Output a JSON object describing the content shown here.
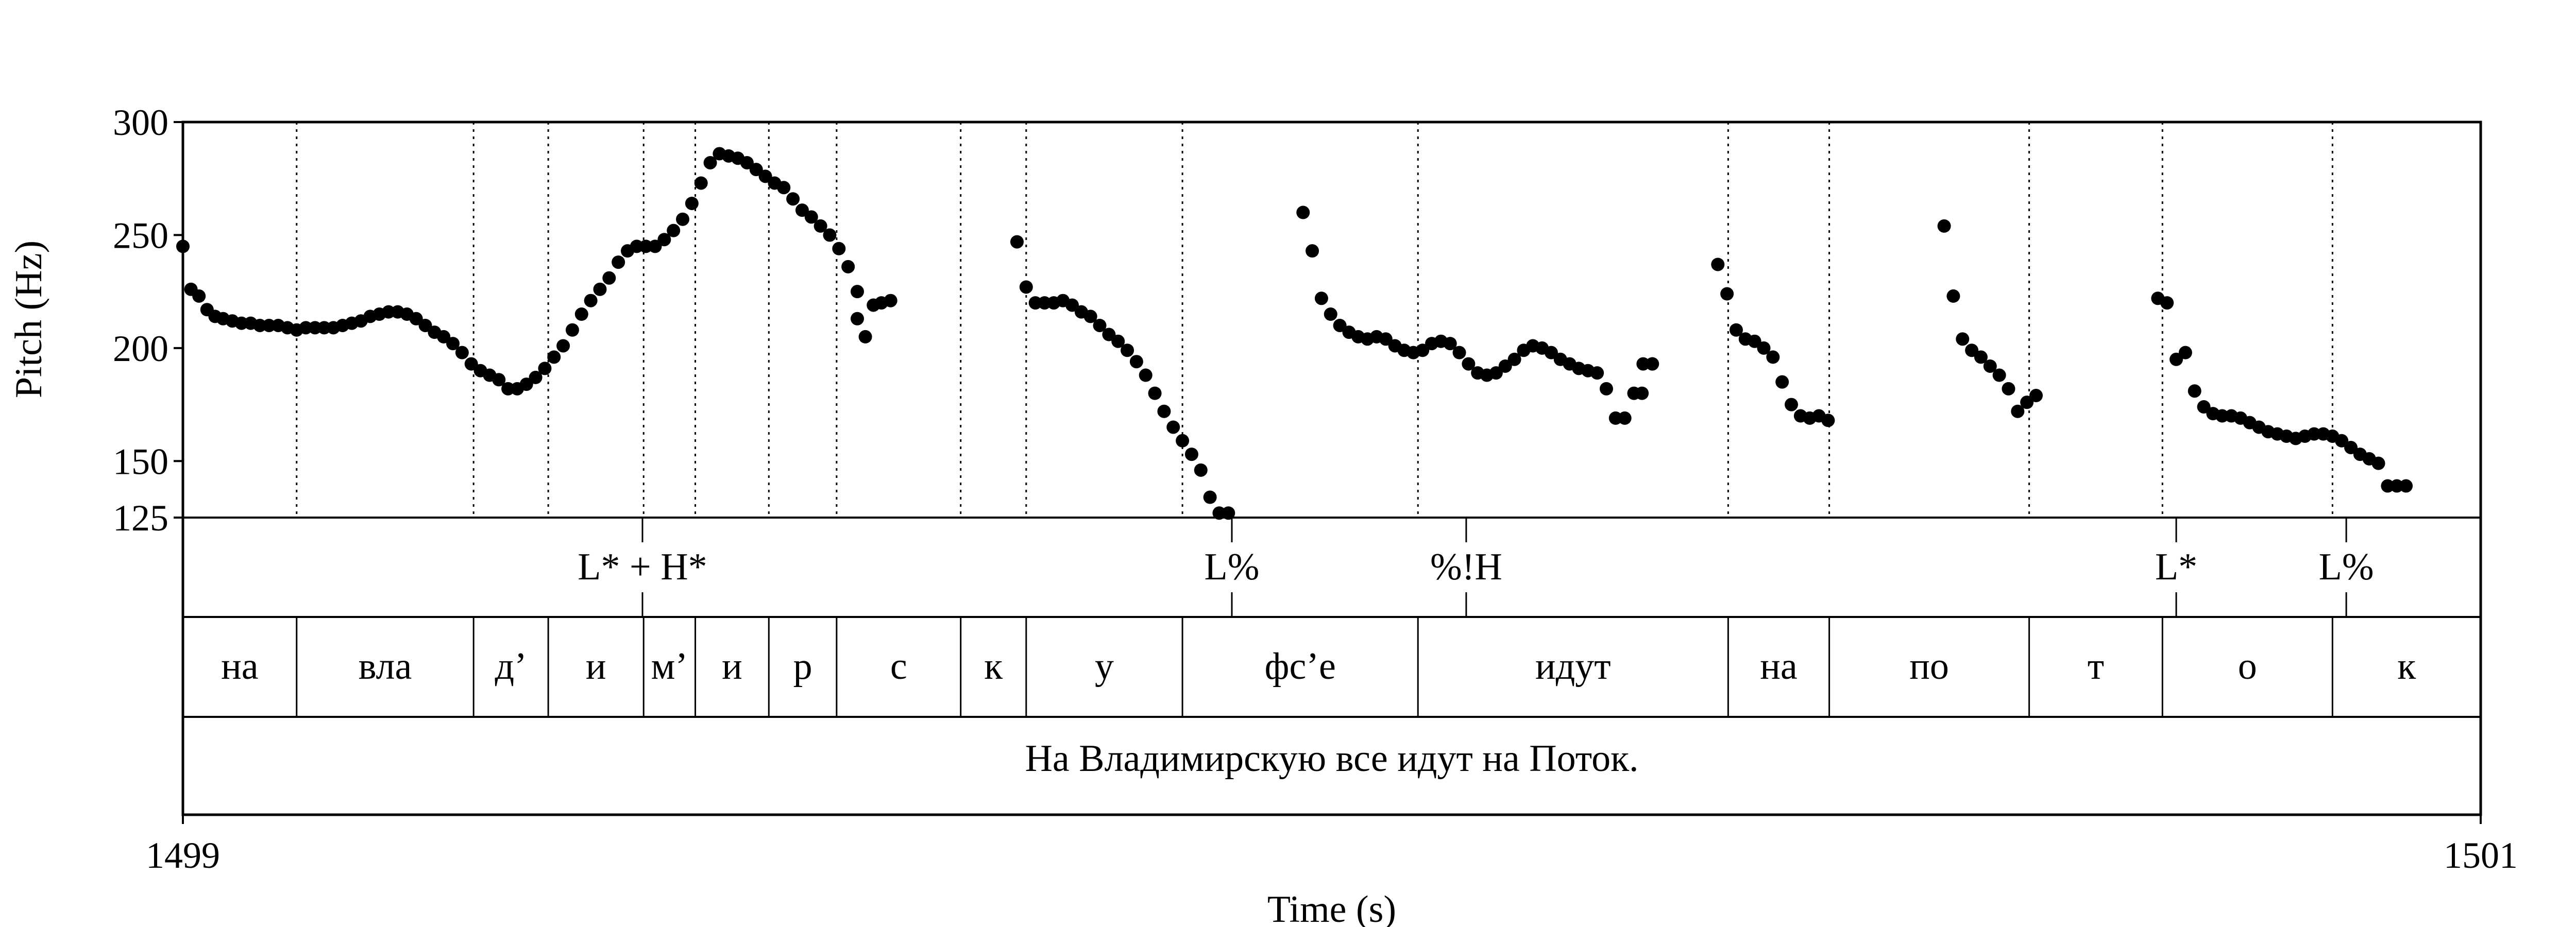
{
  "chart_data": {
    "type": "scatter",
    "title": "",
    "xlabel": "Time (s)",
    "ylabel": "Pitch (Hz)",
    "xlim": [
      1499,
      1501
    ],
    "ylim": [
      125,
      300
    ],
    "x_tick_labels": [
      "1499",
      "1501"
    ],
    "y_ticks": [
      125,
      150,
      200,
      250,
      300
    ],
    "y_tick_labels": [
      "125",
      "150",
      "200",
      "250",
      "300"
    ],
    "segments": [
      {
        "x": [
          1499.0,
          1499.007,
          1499.014,
          1499.021,
          1499.028,
          1499.035,
          1499.043,
          1499.051,
          1499.059,
          1499.067,
          1499.075,
          1499.083,
          1499.091,
          1499.099,
          1499.107,
          1499.115,
          1499.123,
          1499.131,
          1499.139,
          1499.147,
          1499.155,
          1499.163,
          1499.171,
          1499.179,
          1499.187,
          1499.195,
          1499.203,
          1499.211,
          1499.219,
          1499.227,
          1499.235,
          1499.243,
          1499.251,
          1499.259,
          1499.267,
          1499.275,
          1499.283,
          1499.291,
          1499.299,
          1499.307,
          1499.315,
          1499.323,
          1499.331,
          1499.339,
          1499.347,
          1499.355,
          1499.363,
          1499.371,
          1499.379,
          1499.387,
          1499.395,
          1499.403,
          1499.411,
          1499.419,
          1499.427,
          1499.435,
          1499.443,
          1499.451,
          1499.459,
          1499.467,
          1499.475,
          1499.483,
          1499.491,
          1499.499,
          1499.507,
          1499.515,
          1499.523,
          1499.531,
          1499.539,
          1499.547,
          1499.555,
          1499.563,
          1499.571,
          1499.579,
          1499.587
        ],
        "y": [
          245,
          226,
          223,
          217,
          214,
          213,
          212,
          211,
          211,
          210,
          210,
          210,
          209,
          208,
          209,
          209,
          209,
          209,
          210,
          211,
          212,
          214,
          215,
          216,
          216,
          215,
          213,
          210,
          207,
          205,
          202,
          198,
          193,
          190,
          188,
          186,
          182,
          182,
          184,
          187,
          191,
          196,
          201,
          208,
          215,
          221,
          226,
          231,
          238,
          243,
          245,
          245,
          245,
          248,
          252,
          257,
          264,
          273,
          282,
          286,
          285,
          284,
          282,
          279,
          276,
          273,
          271,
          266,
          261,
          258,
          254,
          250,
          244,
          236,
          225
        ]
      },
      {
        "x": [
          1499.587,
          1499.594,
          1499.601,
          1499.608,
          1499.616
        ],
        "y": [
          213,
          205,
          219,
          220,
          221
        ]
      },
      {
        "x": [
          1499.726,
          1499.734,
          1499.742,
          1499.75,
          1499.758,
          1499.766,
          1499.774,
          1499.782,
          1499.79,
          1499.798,
          1499.806,
          1499.814,
          1499.822,
          1499.83,
          1499.838,
          1499.846,
          1499.854,
          1499.862,
          1499.87,
          1499.878,
          1499.886,
          1499.894,
          1499.902,
          1499.91
        ],
        "y": [
          247,
          227,
          220,
          220,
          220,
          221,
          219,
          216,
          214,
          210,
          206,
          203,
          199,
          194,
          188,
          180,
          172,
          165,
          159,
          153,
          146,
          134,
          127,
          127
        ]
      },
      {
        "x": [
          1499.975,
          1499.983,
          1499.991,
          1499.999,
          1500.007,
          1500.015,
          1500.023,
          1500.031,
          1500.039,
          1500.047,
          1500.055,
          1500.063,
          1500.071,
          1500.079,
          1500.087,
          1500.095,
          1500.103,
          1500.111,
          1500.119,
          1500.127,
          1500.135,
          1500.143,
          1500.151,
          1500.159,
          1500.167,
          1500.175,
          1500.183,
          1500.191,
          1500.199,
          1500.207,
          1500.215,
          1500.223,
          1500.231,
          1500.239,
          1500.247,
          1500.255,
          1500.263,
          1500.271,
          1500.279
        ],
        "y": [
          260,
          243,
          222,
          215,
          210,
          207,
          205,
          204,
          205,
          204,
          201,
          199,
          198,
          199,
          202,
          203,
          202,
          198,
          193,
          189,
          188,
          189,
          192,
          195,
          199,
          201,
          200,
          198,
          195,
          193,
          191,
          190,
          189,
          182,
          169,
          169,
          180,
          193,
          193
        ]
      },
      {
        "x": [
          1500.27,
          1500.279
        ],
        "y": [
          180,
          193
        ]
      },
      {
        "x": [
          1500.336,
          1500.344,
          1500.352,
          1500.36,
          1500.368,
          1500.376,
          1500.384,
          1500.392,
          1500.4,
          1500.408,
          1500.416,
          1500.424,
          1500.432
        ],
        "y": [
          237,
          224,
          208,
          204,
          203,
          200,
          196,
          185,
          175,
          170,
          169,
          170,
          168
        ]
      },
      {
        "x": [
          1500.533,
          1500.541,
          1500.549,
          1500.557,
          1500.565,
          1500.573,
          1500.581,
          1500.589,
          1500.597,
          1500.605,
          1500.613
        ],
        "y": [
          254,
          223,
          204,
          199,
          196,
          192,
          188,
          182,
          172,
          176,
          179
        ]
      },
      {
        "x": [
          1500.719,
          1500.727,
          1500.735,
          1500.743,
          1500.751,
          1500.759,
          1500.767,
          1500.775,
          1500.783,
          1500.791,
          1500.799,
          1500.807,
          1500.815,
          1500.823,
          1500.831,
          1500.839,
          1500.847,
          1500.855,
          1500.863,
          1500.871,
          1500.879,
          1500.887,
          1500.895,
          1500.903,
          1500.911,
          1500.919,
          1500.927,
          1500.935
        ],
        "y": [
          222,
          220,
          195,
          198,
          181,
          174,
          171,
          170,
          170,
          169,
          167,
          165,
          163,
          162,
          161,
          160,
          161,
          162,
          162,
          161,
          159,
          156,
          153,
          151,
          149,
          139,
          139,
          139
        ]
      }
    ],
    "tiers": {
      "tones": [
        {
          "label": "L* + H*",
          "t": 1499.4
        },
        {
          "label": "L%",
          "t": 1499.913
        },
        {
          "label": "%!H",
          "t": 1500.117
        },
        {
          "label": "L*",
          "t": 1500.735
        },
        {
          "label": "L%",
          "t": 1500.883
        }
      ],
      "syllables": [
        {
          "label": "на",
          "start": 1499.0,
          "end": 1499.099
        },
        {
          "label": "вла",
          "start": 1499.099,
          "end": 1499.253
        },
        {
          "label": "д’",
          "start": 1499.253,
          "end": 1499.318
        },
        {
          "label": "и",
          "start": 1499.318,
          "end": 1499.401
        },
        {
          "label": "м’",
          "start": 1499.401,
          "end": 1499.446
        },
        {
          "label": "и",
          "start": 1499.446,
          "end": 1499.51
        },
        {
          "label": "р",
          "start": 1499.51,
          "end": 1499.569
        },
        {
          "label": "с",
          "start": 1499.569,
          "end": 1499.677
        },
        {
          "label": "к",
          "start": 1499.677,
          "end": 1499.734
        },
        {
          "label": "у",
          "start": 1499.734,
          "end": 1499.87
        },
        {
          "label": "фс’е",
          "start": 1499.87,
          "end": 1500.075
        },
        {
          "label": "идут",
          "start": 1500.075,
          "end": 1500.345
        },
        {
          "label": "на",
          "start": 1500.345,
          "end": 1500.433
        },
        {
          "label": "по",
          "start": 1500.433,
          "end": 1500.607
        },
        {
          "label": "т",
          "start": 1500.607,
          "end": 1500.723
        },
        {
          "label": "о",
          "start": 1500.723,
          "end": 1500.871
        },
        {
          "label": "к",
          "start": 1500.871,
          "end": 1501.0
        }
      ],
      "sentence": "На Владимирскую все идут на Поток."
    }
  }
}
